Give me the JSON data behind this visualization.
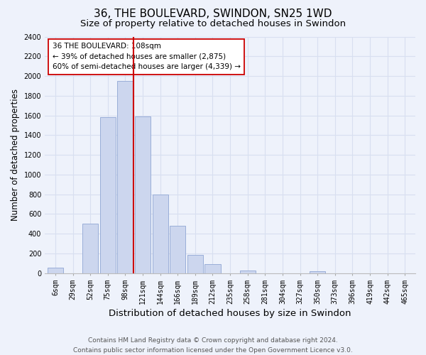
{
  "title": "36, THE BOULEVARD, SWINDON, SN25 1WD",
  "subtitle": "Size of property relative to detached houses in Swindon",
  "xlabel": "Distribution of detached houses by size in Swindon",
  "ylabel": "Number of detached properties",
  "bin_labels": [
    "6sqm",
    "29sqm",
    "52sqm",
    "75sqm",
    "98sqm",
    "121sqm",
    "144sqm",
    "166sqm",
    "189sqm",
    "212sqm",
    "235sqm",
    "258sqm",
    "281sqm",
    "304sqm",
    "327sqm",
    "350sqm",
    "373sqm",
    "396sqm",
    "419sqm",
    "442sqm",
    "465sqm"
  ],
  "bar_heights": [
    55,
    0,
    500,
    1580,
    1950,
    1590,
    800,
    480,
    185,
    90,
    0,
    30,
    0,
    0,
    0,
    20,
    0,
    0,
    0,
    0,
    0
  ],
  "bar_color": "#ccd6ee",
  "bar_edge_color": "#99aed8",
  "vline_color": "#cc0000",
  "vline_pos": 4.48,
  "annotation_text": "36 THE BOULEVARD: 108sqm\n← 39% of detached houses are smaller (2,875)\n60% of semi-detached houses are larger (4,339) →",
  "annotation_box_color": "#ffffff",
  "annotation_box_edge": "#cc0000",
  "ylim": [
    0,
    2400
  ],
  "yticks": [
    0,
    200,
    400,
    600,
    800,
    1000,
    1200,
    1400,
    1600,
    1800,
    2000,
    2200,
    2400
  ],
  "footer_line1": "Contains HM Land Registry data © Crown copyright and database right 2024.",
  "footer_line2": "Contains public sector information licensed under the Open Government Licence v3.0.",
  "background_color": "#eef2fb",
  "grid_color": "#d8dff0",
  "title_fontsize": 11,
  "subtitle_fontsize": 9.5,
  "xlabel_fontsize": 9.5,
  "ylabel_fontsize": 8.5,
  "tick_fontsize": 7,
  "annot_fontsize": 7.5,
  "footer_fontsize": 6.5
}
